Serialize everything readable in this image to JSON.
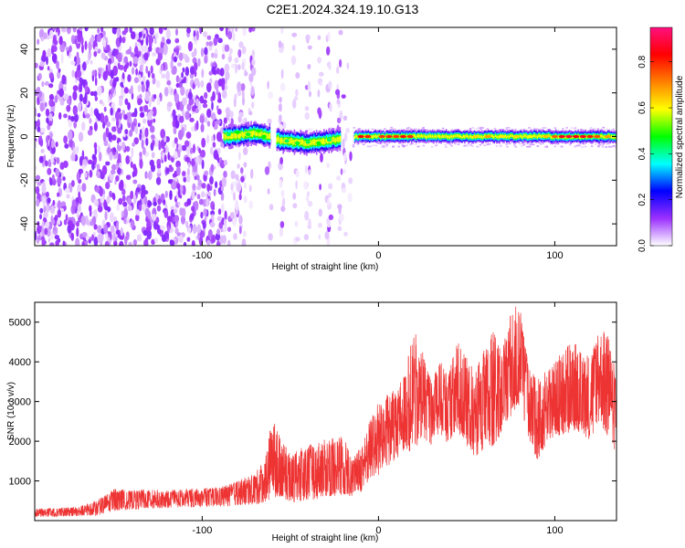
{
  "figure_title": "C2E1.2024.324.19.10.G13",
  "chart_data": [
    {
      "type": "heatmap",
      "xlabel": "Height of straight line (km)",
      "ylabel": "Frequency (Hz)",
      "xlim": [
        -195,
        135
      ],
      "ylim": [
        -50,
        50
      ],
      "x_ticks": [
        -100,
        0,
        100
      ],
      "x_tick_labels": [
        "-100",
        "0",
        "100"
      ],
      "y_ticks": [
        -40,
        -20,
        0,
        20,
        40
      ],
      "y_tick_labels": [
        "-40",
        "-20",
        "0",
        "20",
        "40"
      ],
      "colorbar": {
        "label": "Normalized spectral amplitude",
        "range": [
          0,
          0.95
        ],
        "ticks": [
          0.0,
          0.2,
          0.4,
          0.6,
          0.8
        ],
        "tick_labels": [
          "0.0",
          "0.2",
          "0.4",
          "0.6",
          "0.8"
        ],
        "colors": [
          "#ffffff",
          "#9b30ff",
          "#0000ff",
          "#00ffff",
          "#00ff00",
          "#ffff00",
          "#ff8000",
          "#ff0000",
          "#ff1080"
        ]
      },
      "ridge": {
        "points": [
          [
            -88,
            0
          ],
          [
            -80,
            0.5
          ],
          [
            -70,
            1.5
          ],
          [
            -62,
            0
          ],
          [
            -55,
            -2
          ],
          [
            -40,
            -3
          ],
          [
            -25,
            -1.5
          ],
          [
            -18,
            0
          ],
          [
            0,
            0
          ],
          [
            50,
            0
          ],
          [
            135,
            0
          ]
        ],
        "peak_amplitude": 0.9
      },
      "grid": false
    },
    {
      "type": "line",
      "xlabel": "Height of straight line (km)",
      "ylabel": "SNR (10 * v/v)",
      "xlim": [
        -195,
        135
      ],
      "ylim": [
        0,
        5500
      ],
      "x_ticks": [
        -100,
        0,
        100
      ],
      "x_tick_labels": [
        "-100",
        "0",
        "100"
      ],
      "y_ticks": [
        1000,
        2000,
        3000,
        4000,
        5000
      ],
      "y_tick_labels": [
        "1000",
        "2000",
        "3000",
        "4000",
        "5000"
      ],
      "series": [
        {
          "color": "#ee3333",
          "x": [
            -195,
            -180,
            -170,
            -160,
            -150,
            -140,
            -130,
            -120,
            -110,
            -100,
            -90,
            -80,
            -70,
            -65,
            -60,
            -55,
            -50,
            -40,
            -30,
            -20,
            -15,
            -10,
            -5,
            0,
            5,
            10,
            15,
            20,
            25,
            30,
            35,
            40,
            45,
            50,
            55,
            60,
            65,
            70,
            75,
            80,
            85,
            90,
            95,
            100,
            105,
            110,
            115,
            120,
            125,
            130,
            135
          ],
          "y": [
            200,
            200,
            230,
            250,
            500,
            520,
            540,
            560,
            570,
            580,
            600,
            650,
            750,
            900,
            1300,
            1400,
            900,
            1100,
            1200,
            1300,
            1100,
            1300,
            1800,
            2000,
            2200,
            2500,
            3000,
            2800,
            3300,
            2800,
            3200,
            2900,
            3400,
            3000,
            2600,
            2800,
            2900,
            3300,
            3800,
            4300,
            3200,
            2400,
            2900,
            3000,
            3100,
            3300,
            3200,
            3100,
            3500,
            3000,
            2600
          ],
          "upper": [
            300,
            320,
            350,
            500,
            800,
            750,
            800,
            750,
            800,
            800,
            850,
            1000,
            1200,
            1500,
            2600,
            2000,
            1700,
            1900,
            2100,
            2200,
            1500,
            1900,
            2500,
            3000,
            3200,
            3300,
            3800,
            4800,
            4300,
            3500,
            4000,
            3800,
            4600,
            4100,
            3800,
            4300,
            4800,
            4200,
            5300,
            5480,
            3900,
            3600,
            3800,
            4000,
            4300,
            4600,
            4300,
            4200,
            4900,
            4700,
            3700
          ],
          "lower": [
            100,
            100,
            120,
            120,
            250,
            280,
            300,
            320,
            330,
            350,
            350,
            380,
            400,
            450,
            550,
            600,
            450,
            500,
            600,
            650,
            600,
            700,
            1000,
            1100,
            1300,
            1500,
            1800,
            1700,
            2100,
            1900,
            2200,
            1900,
            2200,
            1900,
            1600,
            1800,
            1800,
            2200,
            2600,
            2900,
            2100,
            1500,
            1900,
            2100,
            2100,
            2300,
            2200,
            2000,
            2500,
            2100,
            1700
          ]
        }
      ],
      "grid": false
    }
  ]
}
